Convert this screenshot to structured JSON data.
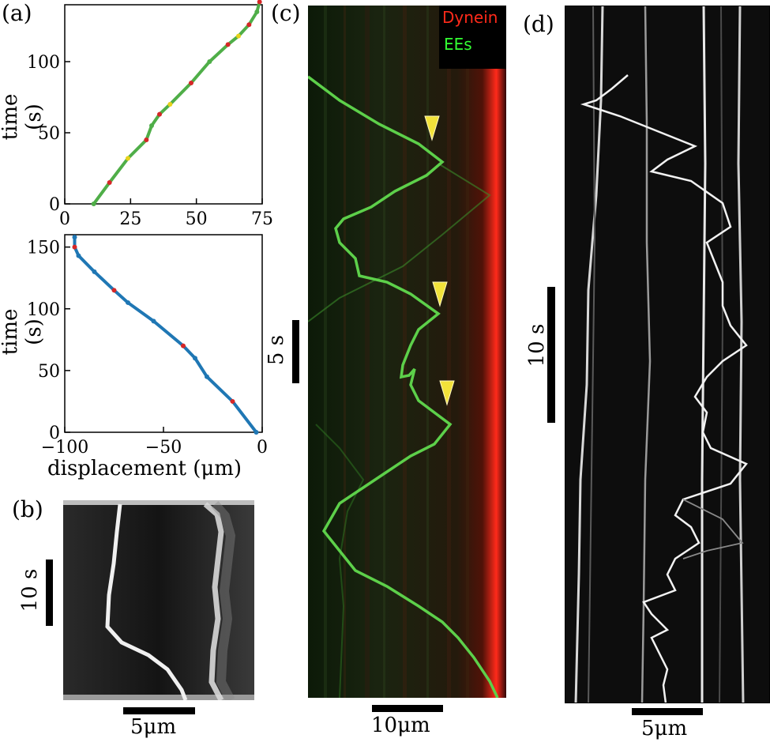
{
  "panels": {
    "a": {
      "label": "(a)",
      "top_plot": {
        "ylabel": "time (s)",
        "x_ticks": [
          "0",
          "25",
          "50",
          "75"
        ],
        "y_ticks": [
          "0",
          "50",
          "100"
        ]
      },
      "bottom_plot": {
        "ylabel": "time (s)",
        "xlabel": "displacement (μm)",
        "x_ticks": [
          "−100",
          "−50",
          "0"
        ],
        "y_ticks": [
          "0",
          "50",
          "100",
          "150"
        ]
      }
    },
    "b": {
      "label": "(b)",
      "time_scale": "10 s",
      "length_scale": "5μm"
    },
    "c": {
      "label": "(c)",
      "legend": [
        "Dynein",
        "EEs"
      ],
      "time_scale": "5 s",
      "length_scale": "10μm",
      "arrow_count": 3
    },
    "d": {
      "label": "(d)",
      "time_scale": "10 s",
      "length_scale": "5μm"
    }
  },
  "colors": {
    "green_track": "#5dd04a",
    "dynein_red": "#ff2a1a",
    "ees_green": "#33ff33",
    "arrow_yellow": "#f2e23a",
    "series_green": "#4fae48",
    "series_red": "#d62728",
    "series_yellow": "#e8d21a",
    "series_blue": "#1f77b4"
  },
  "chart_data": [
    {
      "type": "line",
      "xlabel": "",
      "ylabel": "time (s)",
      "xlim": [
        0,
        75
      ],
      "ylim": [
        0,
        140
      ],
      "series": [
        {
          "x": [
            11,
            17,
            24,
            31,
            33,
            36,
            40,
            48,
            55,
            62,
            66,
            70,
            73,
            74
          ],
          "y": [
            0,
            15,
            32,
            45,
            55,
            63,
            70,
            85,
            100,
            112,
            118,
            126,
            135,
            142
          ]
        }
      ]
    },
    {
      "type": "line",
      "xlabel": "displacement (μm)",
      "ylabel": "time (s)",
      "xlim": [
        -100,
        0
      ],
      "ylim": [
        0,
        160
      ],
      "series": [
        {
          "x": [
            -3,
            -15,
            -28,
            -34,
            -40,
            -55,
            -68,
            -75,
            -85,
            -93,
            -95,
            -95
          ],
          "y": [
            0,
            25,
            45,
            60,
            70,
            90,
            105,
            115,
            130,
            143,
            150,
            158
          ]
        }
      ]
    }
  ]
}
